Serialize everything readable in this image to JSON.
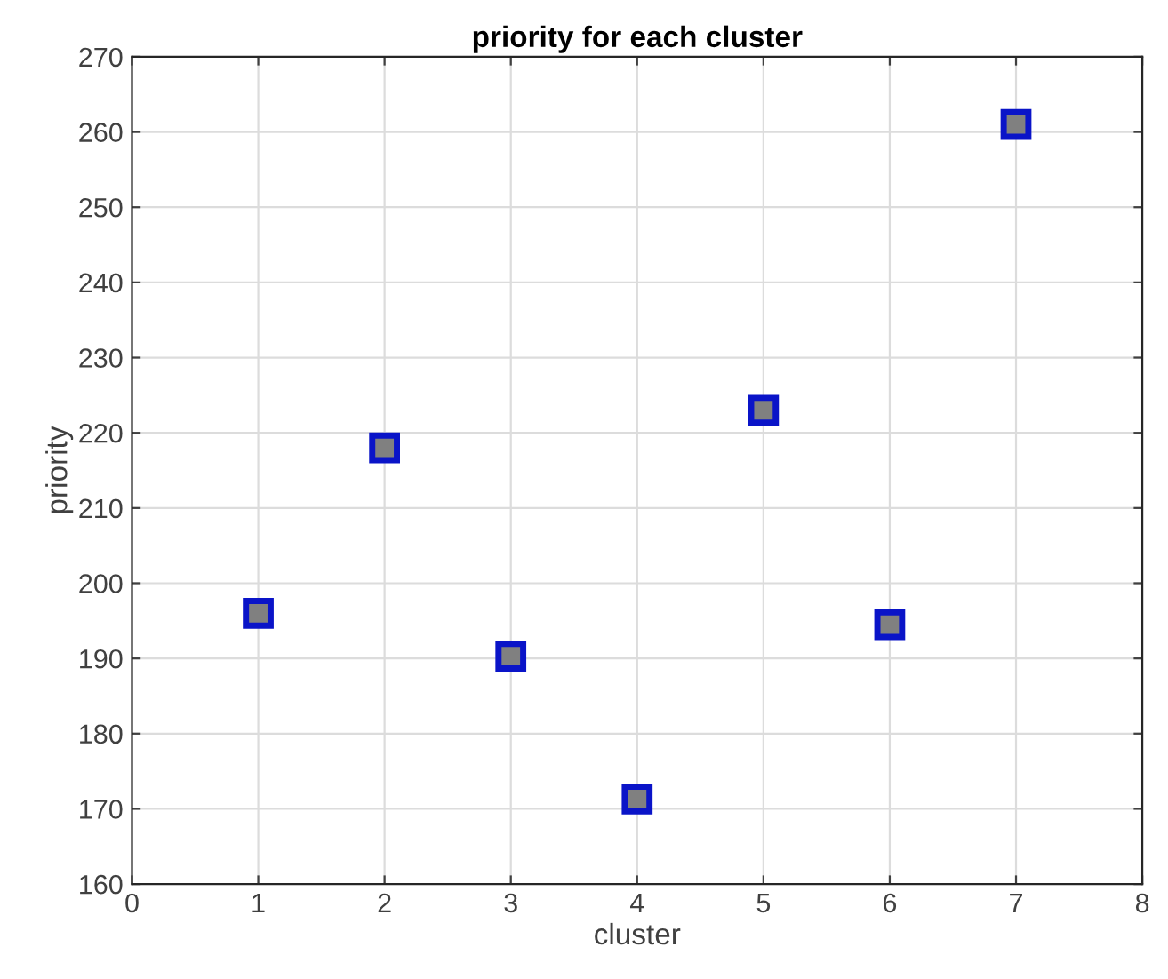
{
  "chart_data": {
    "type": "scatter",
    "title": "priority for each cluster",
    "xlabel": "cluster",
    "ylabel": "priority",
    "x": [
      1,
      2,
      3,
      4,
      5,
      6,
      7
    ],
    "series": [
      {
        "color": "#0a14c8",
        "values": [
          196,
          218,
          190.3,
          171.3,
          223,
          194.5,
          261
        ]
      }
    ],
    "xlim": [
      0,
      8
    ],
    "xticks": [
      0,
      1,
      2,
      3,
      4,
      5,
      6,
      7,
      8
    ],
    "ylim": [
      160,
      270
    ],
    "yticks": [
      160,
      170,
      180,
      190,
      200,
      210,
      220,
      230,
      240,
      250,
      260,
      270
    ],
    "grid": true,
    "marker": "square"
  }
}
